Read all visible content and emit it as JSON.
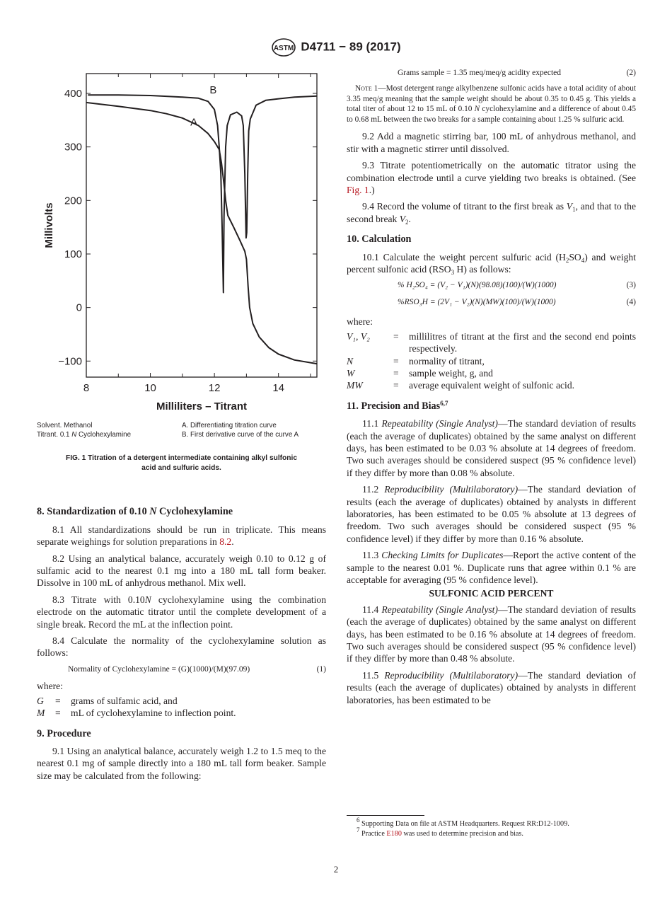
{
  "header": {
    "logo_text": "ASTM",
    "designation": "D4711 − 89 (2017)"
  },
  "chart_data": {
    "type": "line",
    "xlabel": "Milliliters – Titrant",
    "ylabel": "Millivolts",
    "xlim": [
      8,
      15.2
    ],
    "ylim": [
      -130,
      437
    ],
    "xticks": [
      8,
      10,
      12,
      14
    ],
    "yticks": [
      400,
      300,
      200,
      100,
      0,
      -100
    ],
    "ytick_labels": [
      "400",
      "300",
      "200",
      "100",
      "0",
      "−100"
    ],
    "grid": false,
    "annotations": [
      {
        "text": "A",
        "x": 11.25,
        "y": 340
      },
      {
        "text": "B",
        "x": 11.85,
        "y": 400
      }
    ],
    "series": [
      {
        "name": "A",
        "x": [
          8,
          9,
          10,
          10.5,
          11,
          11.5,
          11.8,
          12,
          12.15,
          12.22,
          12.3,
          12.35,
          12.42,
          12.6,
          12.8,
          12.95,
          13.0,
          13.05,
          13.1,
          13.2,
          13.4,
          13.7,
          14,
          14.5,
          15.2
        ],
        "y": [
          383,
          376,
          368,
          362,
          354,
          340,
          325,
          310,
          295,
          270,
          230,
          200,
          172,
          150,
          125,
          105,
          90,
          40,
          0,
          -30,
          -55,
          -75,
          -87,
          -98,
          -105
        ]
      },
      {
        "name": "B",
        "x": [
          8.05,
          9,
          10,
          11,
          11.5,
          11.8,
          12.0,
          12.1,
          12.15,
          12.2,
          12.24,
          12.28,
          12.3,
          12.32,
          12.35,
          12.4,
          12.5,
          12.7,
          12.85,
          12.9,
          12.95,
          12.99,
          13.01,
          13.04,
          13.07,
          13.12,
          13.3,
          13.6,
          14,
          14.5,
          15.2
        ],
        "y": [
          397,
          397,
          396,
          393,
          391,
          385,
          370,
          340,
          300,
          250,
          150,
          28,
          170,
          220,
          300,
          340,
          360,
          365,
          358,
          340,
          250,
          130,
          140,
          250,
          330,
          352,
          378,
          387,
          390,
          393,
          395
        ]
      }
    ]
  },
  "figure": {
    "legend": [
      "Solvent. Methanol",
      "A.   Differentiating titration curve",
      "Titrant. 0.1 ",
      "N",
      " Cyclohexylamine",
      "B.   First derivative curve of the curve A"
    ],
    "caption": "FIG. 1 Titration of a detergent intermediate containing alkyl sulfonic acid and sulfuric acids."
  },
  "left": {
    "s8_num": "8.  Standardization of 0.10 ",
    "s8_n": "N",
    "s8_rest": " Cyclohexylamine",
    "p81": "8.1 All standardizations should be run in triplicate. This means separate weighings for solution preparations in ",
    "p81_link": "8.2",
    "p81_end": ".",
    "p82": "8.2 Using an analytical balance, accurately weigh 0.10 to 0.12 g of sulfamic acid to the nearest 0.1 mg into a 180 mL tall form beaker. Dissolve in 100 mL of anhydrous methanol. Mix well.",
    "p83a": "8.3 Titrate with 0.10",
    "p83n": "N",
    "p83b": " cyclohexylamine using the combination electrode on the automatic titrator until the complete development of a single break. Record the mL at the inflection point.",
    "p84": "8.4 Calculate the normality of the cyclohexylamine solution as follows:",
    "eq1": "Normality of Cyclohexylamine = (G)(1000)/(M)(97.09)",
    "eq1_num": "(1)",
    "where": "where:",
    "defs": [
      {
        "sym": "G",
        "eq": "=",
        "def": "grams of sulfamic acid, and"
      },
      {
        "sym": "M",
        "eq": "=",
        "def": "mL of cyclohexylamine to inflection point."
      }
    ],
    "s9": "9.  Procedure",
    "p91": "9.1 Using an analytical balance, accurately weigh 1.2 to 1.5 meq to the nearest 0.1 mg of sample directly into a 180 mL tall form beaker. Sample size may be calculated from the following:"
  },
  "right": {
    "eq2": "Grams sample = 1.35 meq/meq/g acidity expected",
    "eq2_num": "(2)",
    "note_label": "Note 1",
    "note_a": "—Most detergent range alkylbenzene sulfonic acids have a total acidity of about 3.35 meq/g meaning that the sample weight should be about 0.35 to 0.45 g. This yields a total titer of about 12 to 15 mL of 0.10 ",
    "note_n": "N",
    "note_b": " cyclohexylamine and a difference of about 0.45 to 0.68 mL between the two breaks for a sample containing about 1.25 % sulfuric acid.",
    "p92": "9.2 Add a magnetic stirring bar, 100 mL of anhydrous methanol, and stir with a magnetic stirrer until dissolved.",
    "p93": "9.3 Titrate potentiometrically on the automatic titrator using the combination electrode until a curve yielding two breaks is obtained. (See ",
    "p93_link": "Fig. 1",
    "p93_end": ".)",
    "p94a": "9.4 Record the volume of titrant to the first break as ",
    "p94v1": "V",
    "p94s1": "1",
    "p94b": ", and that to the second break ",
    "p94v2": "V",
    "p94s2": "2",
    "p94c": ".",
    "s10": "10.  Calculation",
    "p101a": "10.1 Calculate the weight percent sulfuric acid (H",
    "p101s2": "2",
    "p101b": "SO",
    "p101s4": "4",
    "p101c": ") and weight percent sulfonic acid (RSO",
    "p101s3": "3",
    "p101d": " H) as follows:",
    "eq3": "% H₂SO₄ = (V₂ − V₁)(N)(98.08)(100)/(W)(1000)",
    "eq3_num": "(3)",
    "eq4": "%RSO₃H = (2V₁ − V₂)(N)(MW)(100)/(W)(1000)",
    "eq4_num": "(4)",
    "where": "where:",
    "defs": [
      {
        "sym": "V₁, V₂",
        "eq": "=",
        "def": "millilitres of titrant at the first and the second end points respectively."
      },
      {
        "sym": "N",
        "eq": "=",
        "def": "normality of titrant,"
      },
      {
        "sym": "W",
        "eq": "=",
        "def": "sample weight, g, and"
      },
      {
        "sym": "MW",
        "eq": "=",
        "def": "average equivalent weight of sulfonic acid."
      }
    ],
    "s11": "11.  Precision and Bias",
    "s11_sup": "6,7",
    "p111n": "11.1 ",
    "p111t": "Repeatability (Single Analyst)",
    "p111": "—The standard deviation of results (each the average of duplicates) obtained by the same analyst on different days, has been estimated to be 0.03 % absolute at 14 degrees of freedom. Two such averages should be considered suspect (95 % confidence level) if they differ by more than 0.08 % absolute.",
    "p112n": "11.2 ",
    "p112t": "Reproducibility (Multilaboratory)",
    "p112": "—The standard deviation of results (each the average of duplicates) obtained by analysts in different laboratories, has been estimated to be 0.05 % absolute at 13 degrees of freedom. Two such averages should be considered suspect (95 % confidence level) if they differ by more than 0.16 % absolute.",
    "p113n": "11.3 ",
    "p113t": "Checking Limits for Duplicates",
    "p113": "—Report the active content of the sample to the nearest 0.01 %. Duplicate runs that agree within 0.1 % are acceptable for averaging (95 % confidence level).",
    "sub_heading": "SULFONIC ACID PERCENT",
    "p114n": "11.4 ",
    "p114t": "Repeatability (Single Analyst)",
    "p114": "—The standard deviation of results (each the average of duplicates) obtained by the same analyst on different days, has been estimated to be 0.16 % absolute at 14 degrees of freedom. Two such averages should be considered suspect (95 % confidence level) if they differ by more than 0.48 % absolute.",
    "p115n": "11.5 ",
    "p115t": "Reproducibility (Multilaboratory)",
    "p115": "—The standard deviation of results (each the average of duplicates) obtained by analysts in different laboratories, has been estimated to be"
  },
  "footnotes": {
    "f6_sup": "6",
    "f6": " Supporting Data on file at ASTM Headquarters. Request RR:D12-1009.",
    "f7_sup": "7",
    "f7a": " Practice ",
    "f7_link": "E180",
    "f7b": " was used to determine precision and bias."
  },
  "page_number": "2"
}
